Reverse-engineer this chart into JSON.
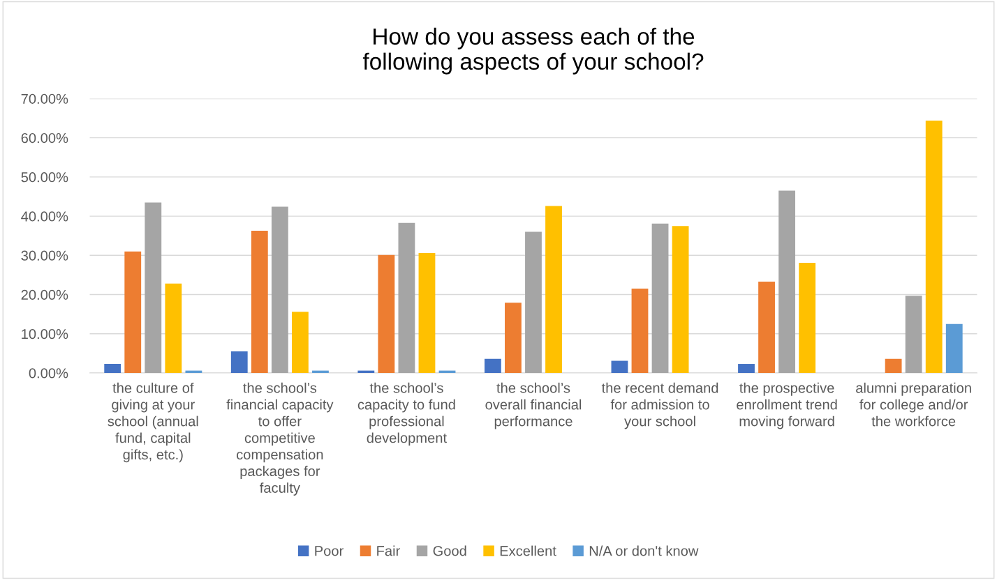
{
  "chart_data": {
    "type": "bar",
    "title": "How do you assess each of the following aspects of your school?",
    "categories": [
      "the culture of giving at your school (annual fund, capital gifts, etc.)",
      "the school’s financial capacity to offer competitive compensation packages for faculty",
      "the school’s capacity to fund professional development",
      "the school’s overall financial performance",
      "the recent demand for admission to your school",
      "the prospective enrollment trend moving forward",
      "alumni preparation for college and/or the workforce"
    ],
    "series": [
      {
        "name": "Poor",
        "color": "#4472c4",
        "values": [
          2.3,
          5.5,
          0.6,
          3.6,
          3.1,
          2.3,
          null
        ]
      },
      {
        "name": "Fair",
        "color": "#ed7d31",
        "values": [
          31.0,
          36.3,
          30.1,
          17.9,
          21.5,
          23.3,
          3.6
        ]
      },
      {
        "name": "Good",
        "color": "#a5a5a5",
        "values": [
          43.5,
          42.4,
          38.3,
          36.0,
          38.1,
          46.5,
          19.7
        ]
      },
      {
        "name": "Excellent",
        "color": "#ffc000",
        "values": [
          22.8,
          15.6,
          30.6,
          42.6,
          37.5,
          28.1,
          64.4
        ]
      },
      {
        "name": "N/A or don't know",
        "color": "#5b9bd5",
        "values": [
          0.6,
          0.6,
          0.6,
          null,
          null,
          null,
          12.5
        ]
      }
    ],
    "ylim": [
      0,
      70
    ],
    "yticks": [
      {
        "value": 0,
        "label": "0.00%"
      },
      {
        "value": 10,
        "label": "10.00%"
      },
      {
        "value": 20,
        "label": "20.00%"
      },
      {
        "value": 30,
        "label": "30.00%"
      },
      {
        "value": 40,
        "label": "40.00%"
      },
      {
        "value": 50,
        "label": "50.00%"
      },
      {
        "value": 60,
        "label": "60.00%"
      },
      {
        "value": 70,
        "label": "70.00%"
      }
    ],
    "grid": "y",
    "legend": "bottom"
  }
}
